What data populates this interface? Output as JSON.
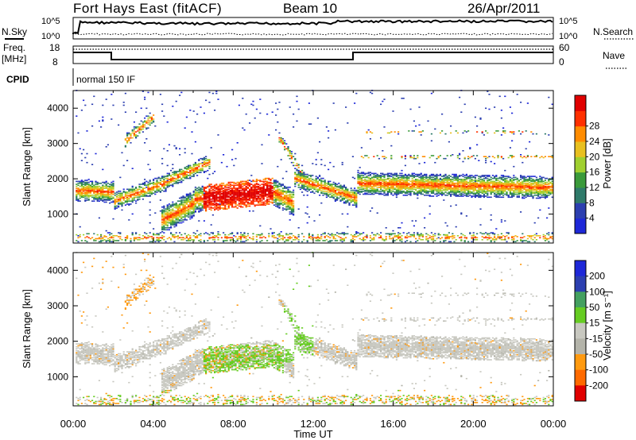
{
  "header": {
    "station": "Fort Hays East (fitACF)",
    "beam": "Beam 10",
    "date": "26/Apr/2011"
  },
  "noise_panel": {
    "left_label": "N.Sky",
    "left_ticks": [
      "10^5",
      "10^0"
    ],
    "right_ticks": [
      "10^5",
      "10^0"
    ],
    "right_label": "N.Search"
  },
  "freq_panel": {
    "left_label_1": "Freq.",
    "left_label_2": "[MHz]",
    "left_ticks": [
      "18",
      "8"
    ],
    "right_ticks": [
      "60",
      "0"
    ],
    "right_label": "Nave",
    "cpid_label": "CPID",
    "cpid_text": "normal 150 IF"
  },
  "colors": {
    "power": [
      "#1e28d8",
      "#2c3fb0",
      "#2f7a6a",
      "#3a9a3a",
      "#a0d030",
      "#e8c020",
      "#ff8c00",
      "#ff3000",
      "#e00000"
    ],
    "velocity": [
      "#e00000",
      "#ff6a00",
      "#ff9a10",
      "#b4b4aa",
      "#c8c8c0",
      "#66cc22",
      "#44a060",
      "#1e28d8"
    ]
  },
  "chart_data": [
    {
      "type": "heatmap",
      "name": "power",
      "title": "",
      "xlabel": "Time UT",
      "ylabel": "Slant Range [km]",
      "xlim": [
        "00:00",
        "24:00"
      ],
      "ylim": [
        180,
        4500
      ],
      "y_ticks": [
        "1000",
        "2000",
        "3000",
        "4000"
      ],
      "x_ticks": [
        "00:00",
        "04:00",
        "08:00",
        "12:00",
        "16:00",
        "20:00",
        "00:00"
      ],
      "colorbar": {
        "label": "Power [dB]",
        "ticks": [
          "4",
          "8",
          "12",
          "16",
          "20",
          "24",
          "28"
        ]
      }
    },
    {
      "type": "heatmap",
      "name": "velocity",
      "title": "",
      "xlabel": "Time UT",
      "ylabel": "Slant Range [km]",
      "xlim": [
        "00:00",
        "24:00"
      ],
      "ylim": [
        180,
        4500
      ],
      "y_ticks": [
        "1000",
        "2000",
        "3000",
        "4000"
      ],
      "x_ticks": [
        "00:00",
        "04:00",
        "08:00",
        "12:00",
        "16:00",
        "20:00",
        "00:00"
      ],
      "colorbar": {
        "label": "Velocity [m s⁻¹]",
        "ticks": [
          "200",
          "100",
          "50",
          "15",
          "-15",
          "-50",
          "-100",
          "-200"
        ]
      }
    }
  ]
}
